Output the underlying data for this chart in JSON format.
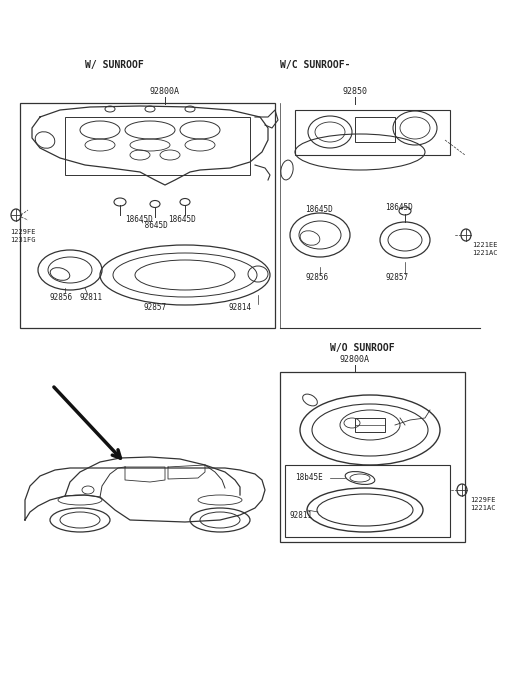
{
  "bg": "white",
  "lc": "#333333",
  "top_left_title": "W/ SUNROOF",
  "top_right_title": "W/C SUNROOF-",
  "bot_right_title": "W/O SUNROOF",
  "lbl_92800A": "92800A",
  "lbl_92850": "92850",
  "lbl_92800A_br": "92800A",
  "lbl_18645D": "18645D",
  "lbl_8645D": "'8645D",
  "lbl_18645D2": "18645D",
  "lbl_92856": "92856",
  "lbl_92811": "92811",
  "lbl_92857": "92857",
  "lbl_92814": "92814",
  "lbl_1229FE": "1229FE",
  "lbl_1231FG": "1231FG",
  "lbl_1221EE": "1221EE",
  "lbl_1221AC_tr": "1221AC",
  "lbl_1229FE_br": "1229FE",
  "lbl_1221AC_br": "1221AC",
  "lbl_18b45E": "18b45E",
  "lbl_92811_br": "92811"
}
